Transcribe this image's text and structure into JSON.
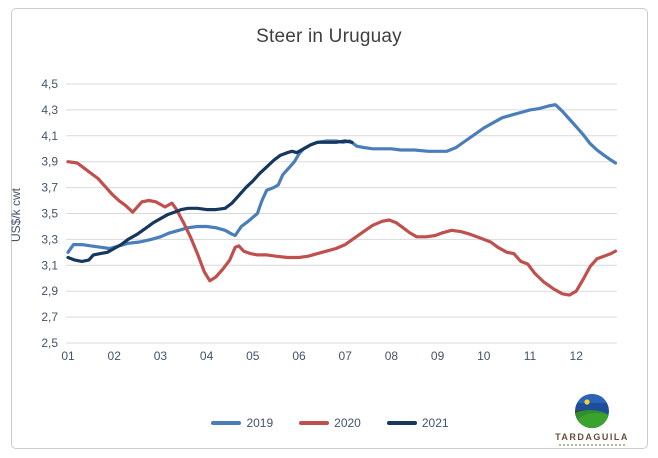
{
  "chart_data": {
    "type": "line",
    "title": "Steer in Uruguay",
    "ylabel": "US$/k cwt",
    "xlabel": "",
    "x_tick_labels": [
      "01",
      "02",
      "03",
      "04",
      "05",
      "06",
      "07",
      "08",
      "09",
      "10",
      "11",
      "12"
    ],
    "y_tick_labels": [
      "4,5",
      "4,3",
      "4,1",
      "3,9",
      "3,7",
      "3,5",
      "3,3",
      "3,1",
      "2,9",
      "2,7",
      "2,5"
    ],
    "ylim": [
      2.5,
      4.5
    ],
    "y_step": 0.2,
    "xlim": [
      1,
      12.9
    ],
    "grid": "horizontal",
    "legend_position": "bottom",
    "series": [
      {
        "name": "2019",
        "color": "#4A7EBB",
        "points": [
          [
            1.0,
            3.2
          ],
          [
            1.12,
            3.26
          ],
          [
            1.3,
            3.26
          ],
          [
            1.5,
            3.25
          ],
          [
            1.7,
            3.24
          ],
          [
            1.9,
            3.23
          ],
          [
            2.1,
            3.25
          ],
          [
            2.3,
            3.27
          ],
          [
            2.55,
            3.28
          ],
          [
            2.8,
            3.3
          ],
          [
            3.0,
            3.32
          ],
          [
            3.2,
            3.35
          ],
          [
            3.4,
            3.37
          ],
          [
            3.6,
            3.39
          ],
          [
            3.8,
            3.4
          ],
          [
            4.0,
            3.4
          ],
          [
            4.2,
            3.39
          ],
          [
            4.4,
            3.37
          ],
          [
            4.55,
            3.34
          ],
          [
            4.62,
            3.33
          ],
          [
            4.75,
            3.4
          ],
          [
            4.9,
            3.44
          ],
          [
            5.0,
            3.47
          ],
          [
            5.1,
            3.5
          ],
          [
            5.2,
            3.6
          ],
          [
            5.3,
            3.68
          ],
          [
            5.45,
            3.7
          ],
          [
            5.55,
            3.72
          ],
          [
            5.65,
            3.8
          ],
          [
            5.8,
            3.86
          ],
          [
            5.9,
            3.9
          ],
          [
            6.0,
            3.96
          ],
          [
            6.1,
            4.0
          ],
          [
            6.25,
            4.03
          ],
          [
            6.4,
            4.05
          ],
          [
            6.6,
            4.06
          ],
          [
            6.8,
            4.06
          ],
          [
            6.95,
            4.05
          ],
          [
            7.1,
            4.06
          ],
          [
            7.25,
            4.02
          ],
          [
            7.4,
            4.01
          ],
          [
            7.6,
            4.0
          ],
          [
            7.8,
            4.0
          ],
          [
            8.0,
            4.0
          ],
          [
            8.2,
            3.99
          ],
          [
            8.5,
            3.99
          ],
          [
            8.8,
            3.98
          ],
          [
            9.0,
            3.98
          ],
          [
            9.2,
            3.98
          ],
          [
            9.4,
            4.01
          ],
          [
            9.6,
            4.06
          ],
          [
            9.8,
            4.11
          ],
          [
            10.0,
            4.16
          ],
          [
            10.2,
            4.2
          ],
          [
            10.4,
            4.24
          ],
          [
            10.6,
            4.26
          ],
          [
            10.8,
            4.28
          ],
          [
            11.0,
            4.3
          ],
          [
            11.2,
            4.31
          ],
          [
            11.4,
            4.33
          ],
          [
            11.55,
            4.34
          ],
          [
            11.7,
            4.29
          ],
          [
            11.85,
            4.23
          ],
          [
            12.0,
            4.17
          ],
          [
            12.15,
            4.11
          ],
          [
            12.3,
            4.04
          ],
          [
            12.45,
            3.99
          ],
          [
            12.6,
            3.95
          ],
          [
            12.72,
            3.92
          ],
          [
            12.85,
            3.89
          ]
        ]
      },
      {
        "name": "2020",
        "color": "#C0504D",
        "points": [
          [
            1.0,
            3.9
          ],
          [
            1.2,
            3.89
          ],
          [
            1.35,
            3.85
          ],
          [
            1.5,
            3.81
          ],
          [
            1.65,
            3.77
          ],
          [
            1.8,
            3.71
          ],
          [
            1.95,
            3.65
          ],
          [
            2.1,
            3.6
          ],
          [
            2.25,
            3.56
          ],
          [
            2.4,
            3.51
          ],
          [
            2.5,
            3.55
          ],
          [
            2.6,
            3.59
          ],
          [
            2.75,
            3.6
          ],
          [
            2.9,
            3.59
          ],
          [
            3.0,
            3.57
          ],
          [
            3.1,
            3.55
          ],
          [
            3.25,
            3.58
          ],
          [
            3.35,
            3.53
          ],
          [
            3.5,
            3.43
          ],
          [
            3.65,
            3.32
          ],
          [
            3.8,
            3.19
          ],
          [
            3.95,
            3.05
          ],
          [
            4.07,
            2.98
          ],
          [
            4.2,
            3.01
          ],
          [
            4.35,
            3.07
          ],
          [
            4.5,
            3.14
          ],
          [
            4.62,
            3.24
          ],
          [
            4.7,
            3.25
          ],
          [
            4.8,
            3.21
          ],
          [
            4.95,
            3.19
          ],
          [
            5.1,
            3.18
          ],
          [
            5.3,
            3.18
          ],
          [
            5.5,
            3.17
          ],
          [
            5.75,
            3.16
          ],
          [
            6.0,
            3.16
          ],
          [
            6.2,
            3.17
          ],
          [
            6.4,
            3.19
          ],
          [
            6.6,
            3.21
          ],
          [
            6.8,
            3.23
          ],
          [
            7.0,
            3.26
          ],
          [
            7.2,
            3.31
          ],
          [
            7.4,
            3.36
          ],
          [
            7.6,
            3.41
          ],
          [
            7.8,
            3.44
          ],
          [
            7.95,
            3.45
          ],
          [
            8.1,
            3.43
          ],
          [
            8.25,
            3.39
          ],
          [
            8.4,
            3.35
          ],
          [
            8.55,
            3.32
          ],
          [
            8.75,
            3.32
          ],
          [
            8.95,
            3.33
          ],
          [
            9.1,
            3.35
          ],
          [
            9.3,
            3.37
          ],
          [
            9.5,
            3.36
          ],
          [
            9.7,
            3.34
          ],
          [
            9.85,
            3.32
          ],
          [
            10.0,
            3.3
          ],
          [
            10.15,
            3.28
          ],
          [
            10.3,
            3.24
          ],
          [
            10.5,
            3.2
          ],
          [
            10.65,
            3.19
          ],
          [
            10.8,
            3.13
          ],
          [
            10.95,
            3.11
          ],
          [
            11.1,
            3.04
          ],
          [
            11.3,
            2.97
          ],
          [
            11.5,
            2.92
          ],
          [
            11.7,
            2.88
          ],
          [
            11.85,
            2.87
          ],
          [
            12.0,
            2.9
          ],
          [
            12.15,
            2.99
          ],
          [
            12.3,
            3.09
          ],
          [
            12.45,
            3.15
          ],
          [
            12.6,
            3.17
          ],
          [
            12.75,
            3.19
          ],
          [
            12.85,
            3.21
          ]
        ]
      },
      {
        "name": "2021",
        "color": "#17375E",
        "points": [
          [
            1.0,
            3.16
          ],
          [
            1.15,
            3.14
          ],
          [
            1.3,
            3.13
          ],
          [
            1.45,
            3.14
          ],
          [
            1.55,
            3.18
          ],
          [
            1.7,
            3.19
          ],
          [
            1.85,
            3.2
          ],
          [
            2.0,
            3.23
          ],
          [
            2.15,
            3.26
          ],
          [
            2.3,
            3.3
          ],
          [
            2.5,
            3.34
          ],
          [
            2.7,
            3.39
          ],
          [
            2.85,
            3.43
          ],
          [
            3.0,
            3.46
          ],
          [
            3.15,
            3.49
          ],
          [
            3.3,
            3.51
          ],
          [
            3.45,
            3.53
          ],
          [
            3.6,
            3.54
          ],
          [
            3.8,
            3.54
          ],
          [
            4.0,
            3.53
          ],
          [
            4.2,
            3.53
          ],
          [
            4.4,
            3.54
          ],
          [
            4.55,
            3.58
          ],
          [
            4.7,
            3.64
          ],
          [
            4.85,
            3.7
          ],
          [
            5.0,
            3.75
          ],
          [
            5.15,
            3.81
          ],
          [
            5.3,
            3.86
          ],
          [
            5.45,
            3.91
          ],
          [
            5.6,
            3.95
          ],
          [
            5.75,
            3.97
          ],
          [
            5.85,
            3.98
          ],
          [
            5.95,
            3.97
          ],
          [
            6.1,
            4.0
          ],
          [
            6.25,
            4.03
          ],
          [
            6.4,
            4.05
          ],
          [
            6.6,
            4.05
          ],
          [
            6.8,
            4.05
          ],
          [
            7.0,
            4.06
          ],
          [
            7.15,
            4.05
          ]
        ]
      }
    ]
  },
  "logo": {
    "brand": "TARDAGUILA"
  },
  "colors": {
    "grid": "#D9D9D9",
    "axis_text": "#44546A",
    "title_text": "#3F3F3F",
    "frame_border": "#CCCCCC",
    "legend_text": "#44546A"
  }
}
